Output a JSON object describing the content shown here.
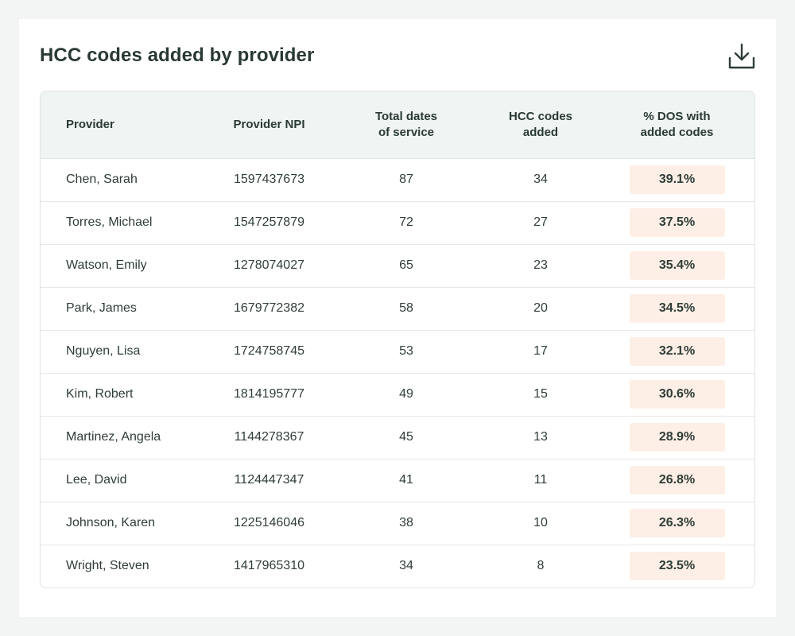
{
  "header": {
    "title": "HCC codes added by provider",
    "download_icon": "download-icon"
  },
  "table": {
    "columns": {
      "provider": "Provider",
      "npi": "Provider NPI",
      "dates_line1": "Total dates",
      "dates_line2": "of service",
      "hcc_line1": "HCC codes",
      "hcc_line2": "added",
      "pct_line1": "% DOS with",
      "pct_line2": "added codes"
    },
    "rows": [
      {
        "provider": "Chen, Sarah",
        "npi": "1597437673",
        "dates": "87",
        "hcc": "34",
        "pct": "39.1%"
      },
      {
        "provider": "Torres, Michael",
        "npi": "1547257879",
        "dates": "72",
        "hcc": "27",
        "pct": "37.5%"
      },
      {
        "provider": "Watson, Emily",
        "npi": "1278074027",
        "dates": "65",
        "hcc": "23",
        "pct": "35.4%"
      },
      {
        "provider": "Park, James",
        "npi": "1679772382",
        "dates": "58",
        "hcc": "20",
        "pct": "34.5%"
      },
      {
        "provider": "Nguyen, Lisa",
        "npi": "1724758745",
        "dates": "53",
        "hcc": "17",
        "pct": "32.1%"
      },
      {
        "provider": "Kim, Robert",
        "npi": "1814195777",
        "dates": "49",
        "hcc": "15",
        "pct": "30.6%"
      },
      {
        "provider": "Martinez, Angela",
        "npi": "1144278367",
        "dates": "45",
        "hcc": "13",
        "pct": "28.9%"
      },
      {
        "provider": "Lee, David",
        "npi": "1124447347",
        "dates": "41",
        "hcc": "11",
        "pct": "26.8%"
      },
      {
        "provider": "Johnson, Karen",
        "npi": "1225146046",
        "dates": "38",
        "hcc": "10",
        "pct": "26.3%"
      },
      {
        "provider": "Wright, Steven",
        "npi": "1417965310",
        "dates": "34",
        "hcc": "8",
        "pct": "23.5%"
      }
    ]
  },
  "colors": {
    "page_background": "#f2f5f3",
    "header_row_background": "#f0f4f2",
    "badge_background": "#fdefe6",
    "title_text": "#2a3a33"
  }
}
